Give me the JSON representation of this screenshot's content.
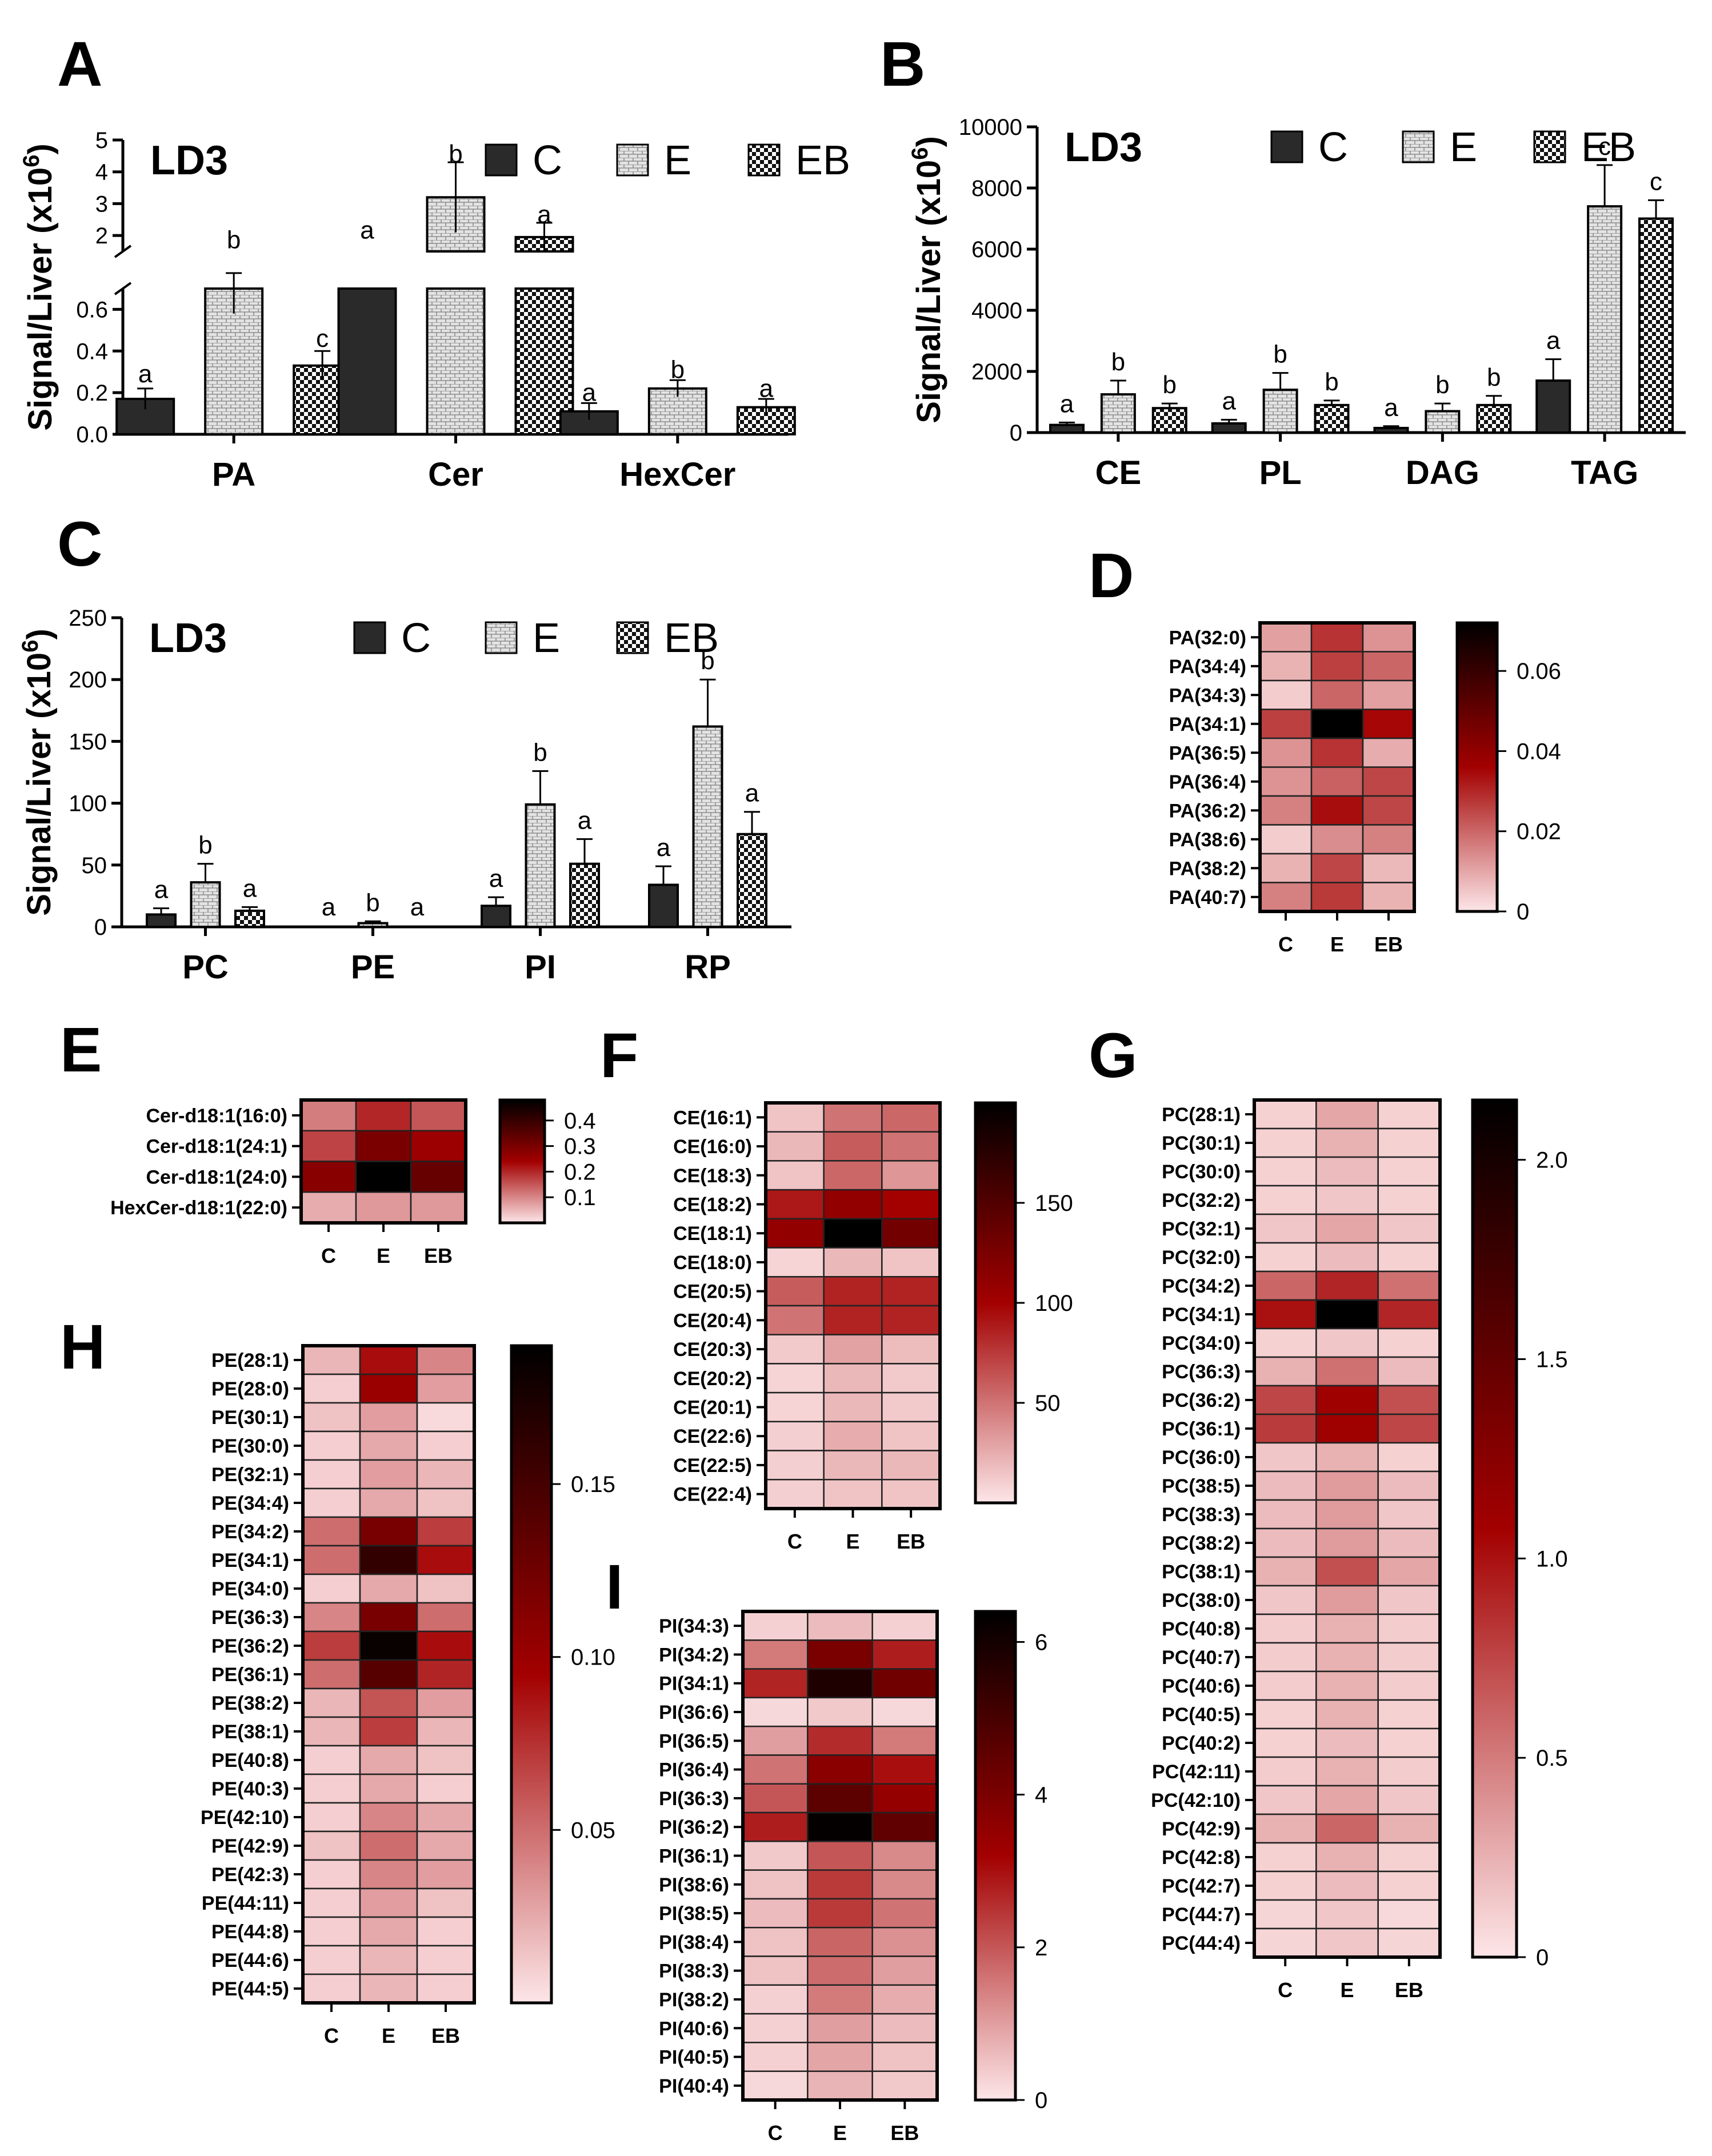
{
  "colors": {
    "C": "#2a2a2a",
    "E_bg": "#e3e3e3",
    "E_line": "#909090",
    "EB_dark": "#111111",
    "EB_light": "#ffffff",
    "heat_low": "#fde6e8",
    "heat_mid": "#a30000",
    "heat_high": "#000000",
    "ink": "#000000"
  },
  "chart_data": [
    {
      "panel": "A",
      "type": "bar",
      "title": "LD3",
      "ylabel": "Signal/Liver (x10",
      "ylabel_sup": "6",
      "ylabel_close": ")",
      "broken_axis": true,
      "lower_range": [
        0,
        0.7
      ],
      "upper_range": [
        1.5,
        5
      ],
      "lower_ticks": [
        "0.0",
        "0.2",
        "0.4",
        "0.6"
      ],
      "upper_ticks": [
        "2",
        "3",
        "4",
        "5"
      ],
      "legend": [
        "C",
        "E",
        "EB"
      ],
      "categories": [
        "PA",
        "Cer",
        "HexCer"
      ],
      "series": [
        {
          "name": "C",
          "values": [
            0.17,
            0.7,
            0.11
          ],
          "err": [
            0.05,
            0.0,
            0.04
          ],
          "letters": [
            "a",
            "a",
            "a"
          ],
          "letter_at": [
            0.25,
            1.9,
            0.16
          ]
        },
        {
          "name": "E",
          "values": [
            0.7,
            3.2,
            0.22
          ],
          "err": [
            0.12,
            1.1,
            0.04
          ],
          "letters": [
            "b",
            "b",
            "b"
          ],
          "letter_at": [
            1.6,
            4.3,
            0.27
          ]
        },
        {
          "name": "EB",
          "values": [
            0.33,
            1.95,
            0.13
          ],
          "err": [
            0.07,
            0.45,
            0.04
          ],
          "letters": [
            "c",
            "a",
            "a"
          ],
          "letter_at": [
            0.42,
            2.4,
            0.18
          ]
        }
      ]
    },
    {
      "panel": "B",
      "type": "bar",
      "title": "LD3",
      "ylabel": "Signal/Liver (x10",
      "ylabel_sup": "6",
      "ylabel_close": ")",
      "ylim": [
        0,
        10000
      ],
      "ticks": [
        "0",
        "2000",
        "4000",
        "6000",
        "8000",
        "10000"
      ],
      "legend": [
        "C",
        "E",
        "EB"
      ],
      "categories": [
        "CE",
        "PL",
        "DAG",
        "TAG"
      ],
      "series": [
        {
          "name": "C",
          "values": [
            250,
            300,
            150,
            1700
          ],
          "err": [
            80,
            120,
            60,
            700
          ],
          "letters": [
            "a",
            "a",
            "a",
            "a"
          ]
        },
        {
          "name": "E",
          "values": [
            1250,
            1400,
            700,
            7400
          ],
          "err": [
            450,
            550,
            250,
            1350
          ],
          "letters": [
            "b",
            "b",
            "b",
            "c"
          ]
        },
        {
          "name": "EB",
          "values": [
            800,
            900,
            900,
            7000
          ],
          "err": [
            150,
            150,
            300,
            600
          ],
          "letters": [
            "b",
            "b",
            "b",
            "c"
          ]
        }
      ]
    },
    {
      "panel": "C",
      "type": "bar",
      "title": "LD3",
      "ylabel": "Signal/Liver (x10",
      "ylabel_sup": "6",
      "ylabel_close": ")",
      "ylim": [
        0,
        250
      ],
      "ticks": [
        "0",
        "50",
        "100",
        "150",
        "200",
        "250"
      ],
      "legend": [
        "C",
        "E",
        "EB"
      ],
      "categories": [
        "PC",
        "PE",
        "PI",
        "RP"
      ],
      "series": [
        {
          "name": "C",
          "values": [
            10,
            0,
            17,
            34
          ],
          "err": [
            5,
            0,
            7,
            15
          ],
          "letters": [
            "a",
            "a",
            "a",
            "a"
          ]
        },
        {
          "name": "E",
          "values": [
            36,
            3,
            99,
            162
          ],
          "err": [
            15,
            1.5,
            27,
            38
          ],
          "letters": [
            "b",
            "b",
            "b",
            "b"
          ]
        },
        {
          "name": "EB",
          "values": [
            13,
            0,
            51,
            75
          ],
          "err": [
            3,
            0,
            20,
            18
          ],
          "letters": [
            "a",
            "a",
            "a",
            "a"
          ]
        }
      ]
    },
    {
      "panel": "D",
      "type": "heatmap",
      "columns": [
        "C",
        "E",
        "EB"
      ],
      "rows": [
        "PA(32:0)",
        "PA(34:4)",
        "PA(34:3)",
        "PA(34:1)",
        "PA(36:5)",
        "PA(36:4)",
        "PA(36:2)",
        "PA(38:6)",
        "PA(38:2)",
        "PA(40:7)"
      ],
      "values": [
        [
          0.011,
          0.028,
          0.013
        ],
        [
          0.008,
          0.026,
          0.02
        ],
        [
          0.004,
          0.02,
          0.011
        ],
        [
          0.026,
          0.072,
          0.035
        ],
        [
          0.013,
          0.028,
          0.009
        ],
        [
          0.013,
          0.021,
          0.025
        ],
        [
          0.016,
          0.034,
          0.025
        ],
        [
          0.004,
          0.014,
          0.016
        ],
        [
          0.008,
          0.025,
          0.007
        ],
        [
          0.016,
          0.027,
          0.008
        ]
      ],
      "max": 0.072,
      "scale_ticks": [
        "0",
        "0.02",
        "0.04",
        "0.06"
      ],
      "scale_values": [
        0,
        0.02,
        0.04,
        0.06
      ]
    },
    {
      "panel": "E",
      "type": "heatmap",
      "columns": [
        "C",
        "E",
        "EB"
      ],
      "rows": [
        "Cer-d18:1(16:0)",
        "Cer-d18:1(24:1)",
        "Cer-d18:1(24:0)",
        "HexCer-d18:1(22:0)"
      ],
      "values": [
        [
          0.11,
          0.2,
          0.15
        ],
        [
          0.17,
          0.3,
          0.25
        ],
        [
          0.28,
          0.48,
          0.33
        ],
        [
          0.06,
          0.08,
          0.08
        ]
      ],
      "max": 0.48,
      "scale_ticks": [
        "0.1",
        "0.2",
        "0.3",
        "0.4"
      ],
      "scale_values": [
        0.1,
        0.2,
        0.3,
        0.4
      ]
    },
    {
      "panel": "F",
      "type": "heatmap",
      "columns": [
        "C",
        "E",
        "EB"
      ],
      "rows": [
        "CE(16:1)",
        "CE(16:0)",
        "CE(18:3)",
        "CE(18:2)",
        "CE(18:1)",
        "CE(18:0)",
        "CE(20:5)",
        "CE(20:4)",
        "CE(20:3)",
        "CE(20:2)",
        "CE(20:1)",
        "CE(22:6)",
        "CE(22:5)",
        "CE(22:4)"
      ],
      "values": [
        [
          15,
          50,
          55
        ],
        [
          20,
          60,
          50
        ],
        [
          15,
          55,
          35
        ],
        [
          90,
          110,
          100
        ],
        [
          110,
          200,
          130
        ],
        [
          8,
          20,
          15
        ],
        [
          60,
          85,
          85
        ],
        [
          50,
          85,
          85
        ],
        [
          12,
          30,
          18
        ],
        [
          8,
          20,
          12
        ],
        [
          8,
          20,
          12
        ],
        [
          10,
          25,
          15
        ],
        [
          10,
          20,
          20
        ],
        [
          10,
          15,
          15
        ]
      ],
      "max": 200,
      "scale_ticks": [
        "50",
        "100",
        "150"
      ],
      "scale_values": [
        50,
        100,
        150
      ]
    },
    {
      "panel": "G",
      "type": "heatmap",
      "columns": [
        "C",
        "E",
        "EB"
      ],
      "rows": [
        "PC(28:1)",
        "PC(30:1)",
        "PC(30:0)",
        "PC(32:2)",
        "PC(32:1)",
        "PC(32:0)",
        "PC(34:2)",
        "PC(34:1)",
        "PC(34:0)",
        "PC(36:3)",
        "PC(36:2)",
        "PC(36:1)",
        "PC(36:0)",
        "PC(38:5)",
        "PC(38:3)",
        "PC(38:2)",
        "PC(38:1)",
        "PC(38:0)",
        "PC(40:8)",
        "PC(40:7)",
        "PC(40:6)",
        "PC(40:5)",
        "PC(40:2)",
        "PC(42:11)",
        "PC(42:10)",
        "PC(42:9)",
        "PC(42:8)",
        "PC(42:7)",
        "PC(44:7)",
        "PC(44:4)"
      ],
      "values": [
        [
          0.1,
          0.3,
          0.1
        ],
        [
          0.1,
          0.25,
          0.1
        ],
        [
          0.1,
          0.2,
          0.1
        ],
        [
          0.1,
          0.15,
          0.1
        ],
        [
          0.15,
          0.3,
          0.15
        ],
        [
          0.1,
          0.2,
          0.1
        ],
        [
          0.6,
          0.9,
          0.55
        ],
        [
          1.0,
          2.15,
          0.9
        ],
        [
          0.1,
          0.15,
          0.1
        ],
        [
          0.25,
          0.55,
          0.2
        ],
        [
          0.75,
          1.1,
          0.7
        ],
        [
          0.8,
          1.1,
          0.75
        ],
        [
          0.15,
          0.25,
          0.1
        ],
        [
          0.2,
          0.35,
          0.2
        ],
        [
          0.2,
          0.35,
          0.15
        ],
        [
          0.2,
          0.35,
          0.2
        ],
        [
          0.25,
          0.7,
          0.3
        ],
        [
          0.15,
          0.35,
          0.15
        ],
        [
          0.12,
          0.25,
          0.12
        ],
        [
          0.12,
          0.25,
          0.12
        ],
        [
          0.12,
          0.25,
          0.12
        ],
        [
          0.1,
          0.25,
          0.1
        ],
        [
          0.1,
          0.2,
          0.1
        ],
        [
          0.12,
          0.25,
          0.12
        ],
        [
          0.15,
          0.3,
          0.15
        ],
        [
          0.25,
          0.6,
          0.25
        ],
        [
          0.1,
          0.25,
          0.1
        ],
        [
          0.1,
          0.2,
          0.1
        ],
        [
          0.08,
          0.15,
          0.06
        ],
        [
          0.08,
          0.15,
          0.08
        ]
      ],
      "max": 2.15,
      "scale_ticks": [
        "0",
        "0.5",
        "1.0",
        "1.5",
        "2.0"
      ],
      "scale_values": [
        0,
        0.5,
        1.0,
        1.5,
        2.0
      ]
    },
    {
      "panel": "H",
      "type": "heatmap",
      "columns": [
        "C",
        "E",
        "EB"
      ],
      "rows": [
        "PE(28:1)",
        "PE(28:0)",
        "PE(30:1)",
        "PE(30:0)",
        "PE(32:1)",
        "PE(34:4)",
        "PE(34:2)",
        "PE(34:1)",
        "PE(34:0)",
        "PE(36:3)",
        "PE(36:2)",
        "PE(36:1)",
        "PE(38:2)",
        "PE(38:1)",
        "PE(40:8)",
        "PE(40:3)",
        "PE(42:10)",
        "PE(42:9)",
        "PE(42:3)",
        "PE(44:11)",
        "PE(44:8)",
        "PE(44:6)",
        "PE(44:5)"
      ],
      "values": [
        [
          0.02,
          0.09,
          0.04
        ],
        [
          0.01,
          0.1,
          0.03
        ],
        [
          0.015,
          0.03,
          0.005
        ],
        [
          0.01,
          0.025,
          0.01
        ],
        [
          0.01,
          0.03,
          0.02
        ],
        [
          0.01,
          0.025,
          0.015
        ],
        [
          0.05,
          0.12,
          0.07
        ],
        [
          0.05,
          0.16,
          0.09
        ],
        [
          0.01,
          0.025,
          0.015
        ],
        [
          0.04,
          0.12,
          0.05
        ],
        [
          0.07,
          0.185,
          0.09
        ],
        [
          0.05,
          0.14,
          0.08
        ],
        [
          0.02,
          0.06,
          0.03
        ],
        [
          0.02,
          0.07,
          0.02
        ],
        [
          0.01,
          0.025,
          0.015
        ],
        [
          0.01,
          0.025,
          0.01
        ],
        [
          0.01,
          0.04,
          0.025
        ],
        [
          0.015,
          0.05,
          0.025
        ],
        [
          0.01,
          0.04,
          0.03
        ],
        [
          0.01,
          0.03,
          0.015
        ],
        [
          0.01,
          0.025,
          0.01
        ],
        [
          0.01,
          0.02,
          0.01
        ],
        [
          0.01,
          0.02,
          0.01
        ]
      ],
      "max": 0.19,
      "scale_ticks": [
        "0.05",
        "0.10",
        "0.15"
      ],
      "scale_values": [
        0.05,
        0.1,
        0.15
      ]
    },
    {
      "panel": "I",
      "type": "heatmap",
      "columns": [
        "C",
        "E",
        "EB"
      ],
      "rows": [
        "PI(34:3)",
        "PI(34:2)",
        "PI(34:1)",
        "PI(36:6)",
        "PI(36:5)",
        "PI(36:4)",
        "PI(36:3)",
        "PI(36:2)",
        "PI(36:1)",
        "PI(38:6)",
        "PI(38:5)",
        "PI(38:4)",
        "PI(38:3)",
        "PI(38:2)",
        "PI(40:6)",
        "PI(40:5)",
        "PI(40:4)"
      ],
      "values": [
        [
          0.3,
          0.6,
          0.3
        ],
        [
          1.5,
          4.0,
          2.8
        ],
        [
          2.7,
          5.8,
          4.2
        ],
        [
          0.2,
          0.4,
          0.2
        ],
        [
          1.0,
          2.6,
          1.5
        ],
        [
          1.6,
          3.7,
          3.0
        ],
        [
          2.0,
          4.6,
          3.5
        ],
        [
          2.8,
          6.3,
          4.5
        ],
        [
          0.4,
          2.0,
          1.3
        ],
        [
          0.5,
          2.4,
          1.3
        ],
        [
          0.6,
          2.4,
          1.6
        ],
        [
          0.5,
          1.8,
          1.2
        ],
        [
          0.5,
          1.7,
          1.0
        ],
        [
          0.3,
          1.5,
          0.8
        ],
        [
          0.3,
          1.0,
          0.6
        ],
        [
          0.3,
          0.9,
          0.5
        ],
        [
          0.2,
          0.7,
          0.4
        ]
      ],
      "max": 6.4,
      "scale_ticks": [
        "0",
        "2",
        "4",
        "6"
      ],
      "scale_values": [
        0,
        2,
        4,
        6
      ]
    }
  ]
}
